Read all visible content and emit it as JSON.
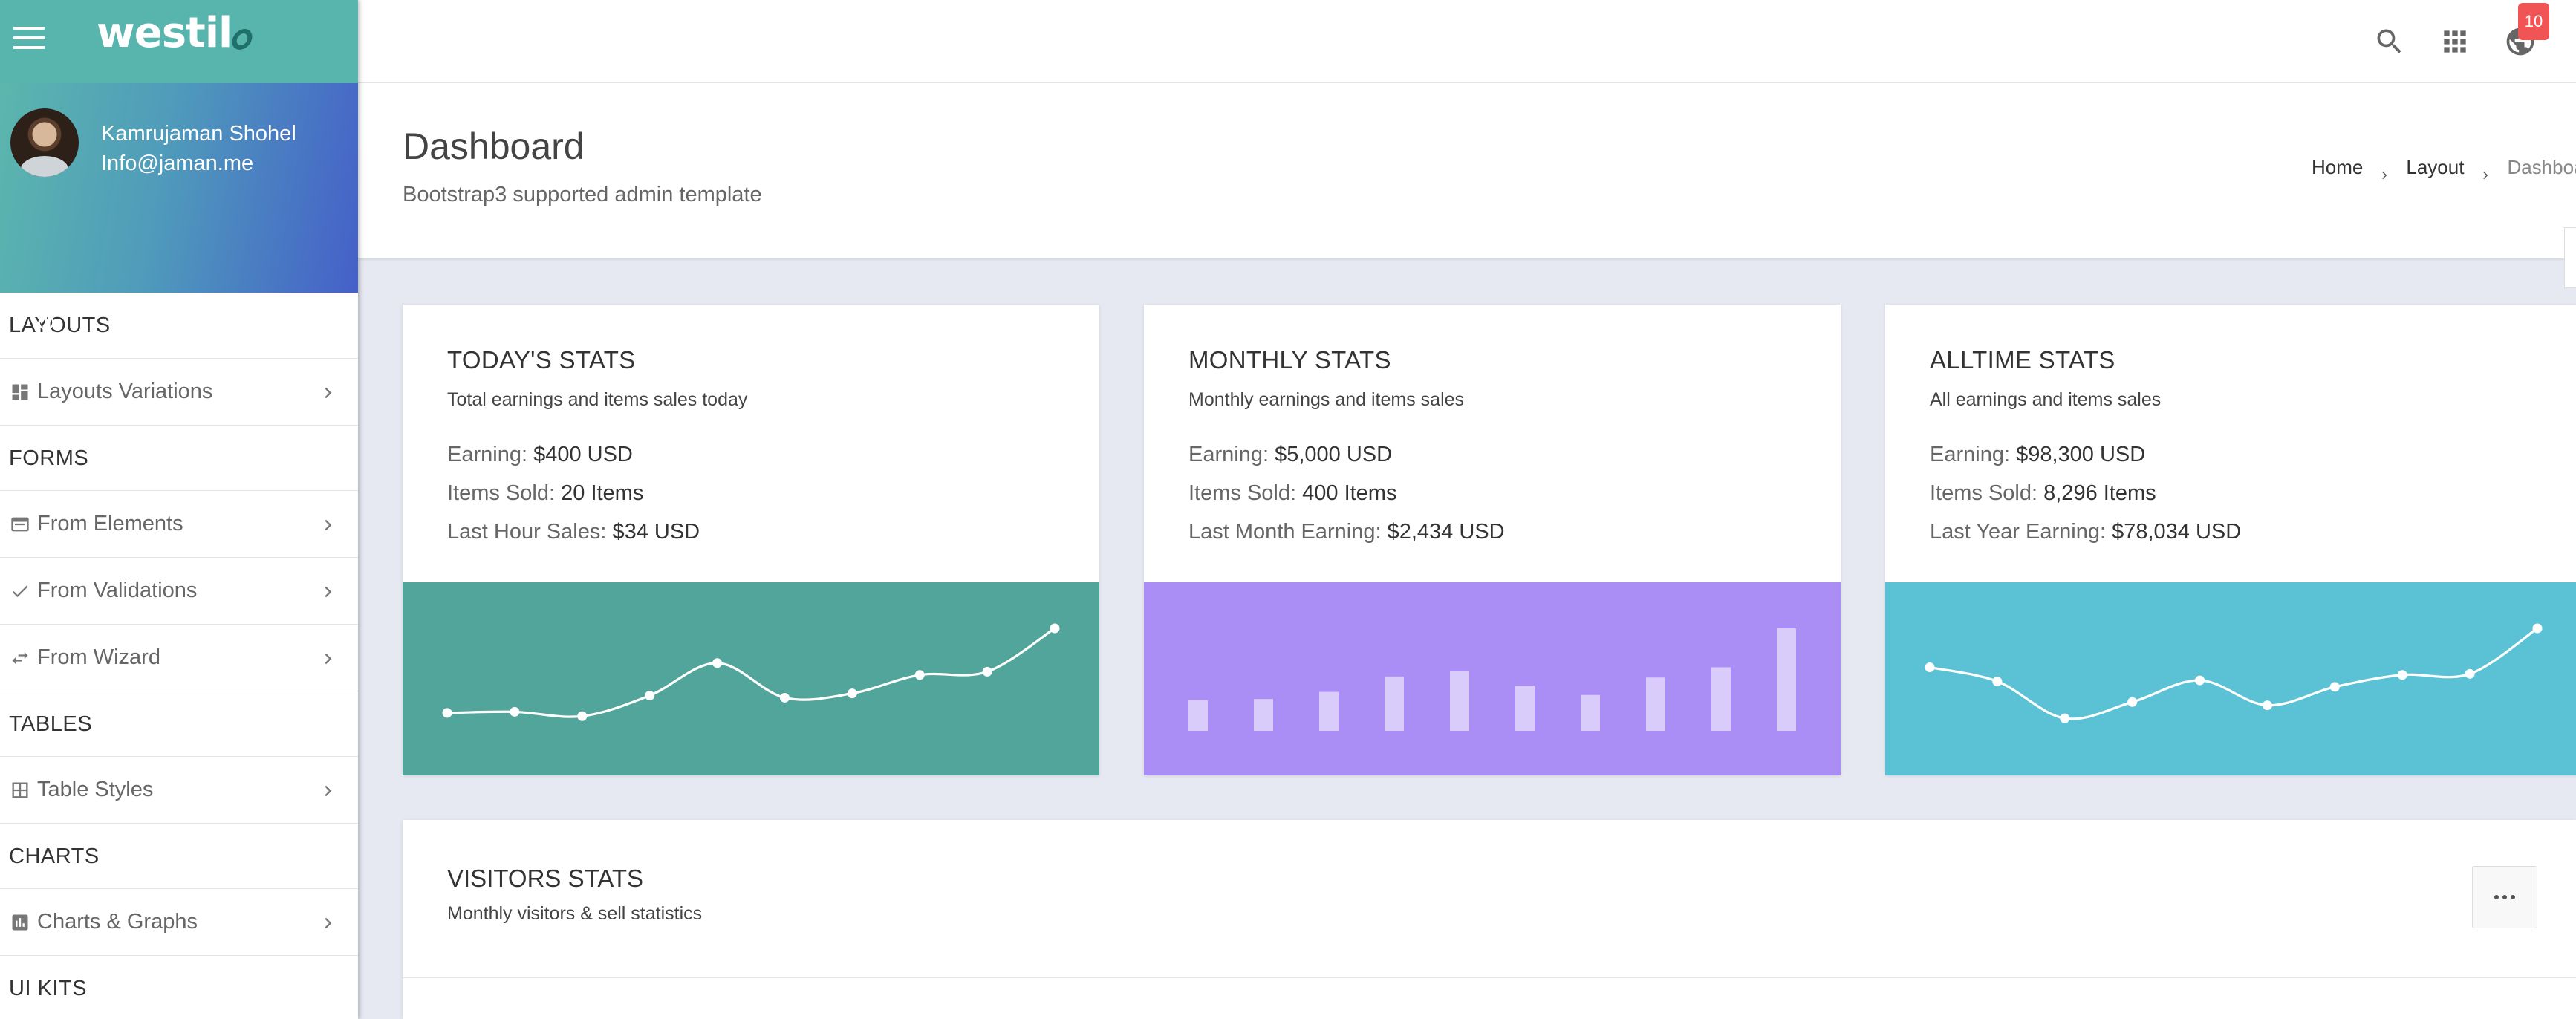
{
  "brand": {
    "logo_text": "westil"
  },
  "user": {
    "name": "Kamrujaman Shohel",
    "email": "Info@jaman.me"
  },
  "profile_actions": [
    "power-icon",
    "account-icon",
    "key-icon",
    "settings-icon"
  ],
  "sidebar": {
    "sections": [
      {
        "heading": "LAYOUTS",
        "items": [
          {
            "label": "Layouts Variations",
            "icon": "dashboard-icon"
          }
        ]
      },
      {
        "heading": "FORMS",
        "items": [
          {
            "label": "From Elements",
            "icon": "form-icon"
          },
          {
            "label": "From Validations",
            "icon": "check-icon"
          },
          {
            "label": "From Wizard",
            "icon": "swap-icon"
          }
        ]
      },
      {
        "heading": "TABLES",
        "items": [
          {
            "label": "Table Styles",
            "icon": "table-icon"
          }
        ]
      },
      {
        "heading": "CHARTS",
        "items": [
          {
            "label": "Charts & Graphs",
            "icon": "bar-chart-icon"
          }
        ]
      },
      {
        "heading": "UI KITS",
        "items": []
      }
    ]
  },
  "topbar": {
    "notification_count": "10"
  },
  "header": {
    "title": "Dashboard",
    "subtitle": "Bootstrap3 supported admin template",
    "breadcrumb": [
      "Home",
      "Layout",
      "Dashboard"
    ]
  },
  "cards": [
    {
      "title": "TODAY'S STATS",
      "subtitle": "Total earnings and items sales today",
      "lines": [
        {
          "label": "Earning:",
          "value": "$400 USD"
        },
        {
          "label": "Items Sold:",
          "value": "20 Items"
        },
        {
          "label": "Last Hour Sales:",
          "value": "$34 USD"
        }
      ],
      "color": "#52a59a"
    },
    {
      "title": "MONTHLY STATS",
      "subtitle": "Monthly earnings and items sales",
      "lines": [
        {
          "label": "Earning:",
          "value": "$5,000 USD"
        },
        {
          "label": "Items Sold:",
          "value": "400 Items"
        },
        {
          "label": "Last Month Earning:",
          "value": "$2,434 USD"
        }
      ],
      "color": "#ab8ef5"
    },
    {
      "title": "ALLTIME STATS",
      "subtitle": "All earnings and items sales",
      "lines": [
        {
          "label": "Earning:",
          "value": "$98,300 USD"
        },
        {
          "label": "Items Sold:",
          "value": "8,296 Items"
        },
        {
          "label": "Last Year Earning:",
          "value": "$78,034 USD"
        }
      ],
      "color": "#5bc2d5"
    }
  ],
  "chart_data": [
    {
      "type": "line",
      "values": [
        22,
        23,
        19,
        38,
        68,
        36,
        40,
        57,
        60,
        100
      ]
    },
    {
      "type": "bar",
      "values": [
        30,
        31,
        38,
        53,
        58,
        44,
        35,
        52,
        62,
        100
      ]
    },
    {
      "type": "line",
      "values": [
        64,
        51,
        17,
        32,
        52,
        29,
        46,
        57,
        58,
        100
      ]
    }
  ],
  "visitors": {
    "title": "VISITORS STATS",
    "subtitle": "Monthly visitors & sell statistics"
  }
}
